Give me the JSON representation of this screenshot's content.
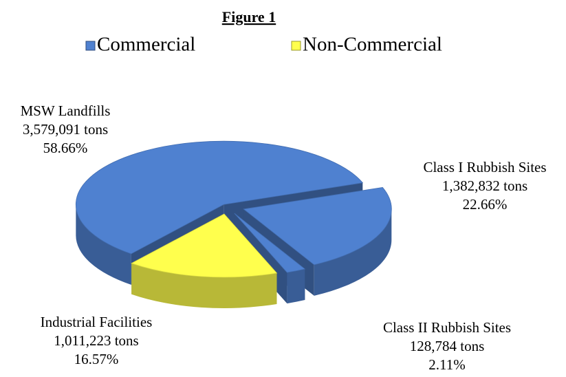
{
  "chart_data": {
    "type": "pie",
    "title": "Figure 1",
    "legend": [
      {
        "name": "Commercial",
        "color": "#4f81d0"
      },
      {
        "name": "Non-Commercial",
        "color": "#ffff4d"
      }
    ],
    "categories": [
      "MSW Landfills",
      "Class I Rubbish Sites",
      "Class II Rubbish Sites",
      "Industrial Facilities"
    ],
    "values": [
      3579091,
      1382832,
      128784,
      1011223
    ],
    "value_labels": [
      "3,579,091 tons",
      "1,382,832 tons",
      "128,784 tons",
      "1,011,223 tons"
    ],
    "percents": [
      58.66,
      22.66,
      2.11,
      16.57
    ],
    "percent_labels": [
      "58.66%",
      "22.66%",
      "2.11%",
      "16.57%"
    ],
    "colors": [
      "#4f81d0",
      "#4f81d0",
      "#4f81d0",
      "#ffff4d"
    ]
  }
}
